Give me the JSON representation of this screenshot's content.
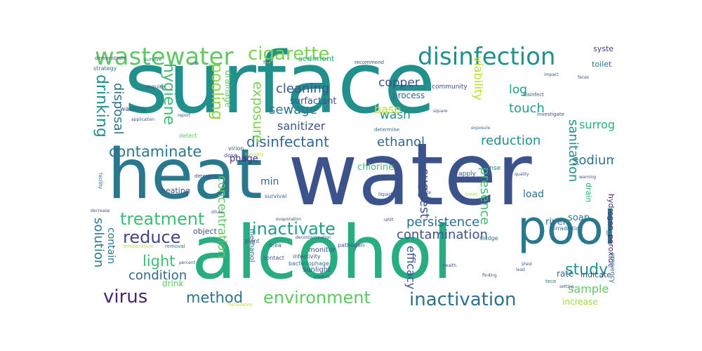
{
  "chart_data": {
    "type": "wordcloud",
    "colormap": "viridis",
    "words": [
      {
        "text": "surface",
        "color": "#21908d",
        "rot": 0
      },
      {
        "text": "water",
        "color": "#3b528b",
        "rot": 0
      },
      {
        "text": "heat",
        "color": "#2a788e",
        "rot": 0
      },
      {
        "text": "alcohol",
        "color": "#27ad81",
        "rot": 0
      },
      {
        "text": "pool",
        "color": "#2a788e",
        "rot": 0
      },
      {
        "text": "wastewater",
        "color": "#5ec962",
        "rot": 0
      },
      {
        "text": "disinfection",
        "color": "#21908d",
        "rot": 0
      },
      {
        "text": "cigarette",
        "color": "#7ad151",
        "rot": 0
      },
      {
        "text": "contaminate",
        "color": "#2a788e",
        "rot": 0
      },
      {
        "text": "disinfectant",
        "color": "#31688e",
        "rot": 0
      },
      {
        "text": "inactivation",
        "color": "#2c728e",
        "rot": 0
      },
      {
        "text": "inactivate",
        "color": "#1f9e89",
        "rot": 0
      },
      {
        "text": "treatment",
        "color": "#3fbc73",
        "rot": 0
      },
      {
        "text": "environment",
        "color": "#5ec962",
        "rot": 0
      },
      {
        "text": "virus",
        "color": "#482475",
        "rot": 0
      },
      {
        "text": "reduce",
        "color": "#414487",
        "rot": 0
      },
      {
        "text": "method",
        "color": "#2c728e",
        "rot": 0
      },
      {
        "text": "light",
        "color": "#3fbc73",
        "rot": 0
      },
      {
        "text": "study",
        "color": "#21908d",
        "rot": 0
      },
      {
        "text": "cleaning",
        "color": "#3b528b",
        "rot": 0
      },
      {
        "text": "sewage",
        "color": "#2a788e",
        "rot": 0
      },
      {
        "text": "ethanol",
        "color": "#31688e",
        "rot": 0
      },
      {
        "text": "persistence",
        "color": "#2c728e",
        "rot": 0
      },
      {
        "text": "contamination",
        "color": "#3b528b",
        "rot": 0
      },
      {
        "text": "condition",
        "color": "#31688e",
        "rot": 0
      },
      {
        "text": "reduction",
        "color": "#21908d",
        "rot": 0
      },
      {
        "text": "sodium",
        "color": "#2c728e",
        "rot": 0
      },
      {
        "text": "sanitation",
        "color": "#21908d",
        "rot": 90
      },
      {
        "text": "touch",
        "color": "#1f9e89",
        "rot": 0
      },
      {
        "text": "copper",
        "color": "#3b528b",
        "rot": 0
      },
      {
        "text": "wash",
        "color": "#21908d",
        "rot": 0
      },
      {
        "text": "base",
        "color": "#b5de2b",
        "rot": 0
      },
      {
        "text": "surrogate",
        "color": "#27ad81",
        "rot": 0
      },
      {
        "text": "log",
        "color": "#1f9e89",
        "rot": 0
      },
      {
        "text": "sanitizer",
        "color": "#3b528b",
        "rot": 0
      },
      {
        "text": "exposure",
        "color": "#7ad151",
        "rot": 90
      },
      {
        "text": "pooling",
        "color": "#90d743",
        "rot": 90
      },
      {
        "text": "hygiene",
        "color": "#3fbc73",
        "rot": 90
      },
      {
        "text": "drinking",
        "color": "#21908d",
        "rot": 90
      },
      {
        "text": "disposal",
        "color": "#2c728e",
        "rot": 90
      },
      {
        "text": "solution",
        "color": "#2a788e",
        "rot": 90
      },
      {
        "text": "viability",
        "color": "#b5de2b",
        "rot": 90
      },
      {
        "text": "concentration",
        "color": "#5ec962",
        "rot": 90
      },
      {
        "text": "presence",
        "color": "#3fbc73",
        "rot": 90
      },
      {
        "text": "suggest",
        "color": "#3b528b",
        "rot": 90
      },
      {
        "text": "effect",
        "color": "#31688e",
        "rot": 90
      },
      {
        "text": "efficacy",
        "color": "#3b528b",
        "rot": 90
      },
      {
        "text": "sample",
        "color": "#5ec962",
        "rot": 0
      },
      {
        "text": "chlorine",
        "color": "#3fbc73",
        "rot": 0
      },
      {
        "text": "min",
        "color": "#31688e",
        "rot": 0
      },
      {
        "text": "surfactant",
        "color": "#3b528b",
        "rot": 0
      },
      {
        "text": "process",
        "color": "#31688e",
        "rot": 0
      },
      {
        "text": "phage",
        "color": "#482878",
        "rot": 0
      },
      {
        "text": "increase",
        "color": "#a0da39",
        "rot": 0
      },
      {
        "text": "drainage",
        "color": "#5ec962",
        "rot": 90
      },
      {
        "text": "contain",
        "color": "#2a788e",
        "rot": 90
      },
      {
        "text": "soap",
        "color": "#2c728e",
        "rot": 0
      },
      {
        "text": "river",
        "color": "#31688e",
        "rot": 0
      },
      {
        "text": "load",
        "color": "#2c728e",
        "rot": 0
      },
      {
        "text": "drink",
        "color": "#5ec962",
        "rot": 0
      },
      {
        "text": "rate",
        "color": "#31688e",
        "rot": 0
      },
      {
        "text": "indicate",
        "color": "#3b528b",
        "rot": 0
      },
      {
        "text": "toilet",
        "color": "#2c728e",
        "rot": 0
      },
      {
        "text": "system",
        "color": "#414487",
        "rot": 0
      },
      {
        "text": "heating",
        "color": "#3b528b",
        "rot": 0
      },
      {
        "text": "sediment",
        "color": "#27ad81",
        "rot": 0
      },
      {
        "text": "community",
        "color": "#3b528b",
        "rot": 0
      },
      {
        "text": "object",
        "color": "#3b528b",
        "rot": 0
      },
      {
        "text": "monitor",
        "color": "#3b528b",
        "rot": 0
      },
      {
        "text": "sunlight",
        "color": "#3b528b",
        "rot": 0
      },
      {
        "text": "rinse",
        "color": "#2c728e",
        "rot": 0
      },
      {
        "text": "apply",
        "color": "#3b528b",
        "rot": 0
      },
      {
        "text": "hydrogen_peroxide",
        "color": "#482878",
        "rot": 90
      },
      {
        "text": "drain",
        "color": "#27ad81",
        "rot": 90
      },
      {
        "text": "washing",
        "color": "#3b528b",
        "rot": 0
      },
      {
        "text": "strategy",
        "color": "#2c728e",
        "rot": 0
      },
      {
        "text": "demonstrate",
        "color": "#3b528b",
        "rot": 0
      },
      {
        "text": "survive",
        "color": "#2c728e",
        "rot": 0
      },
      {
        "text": "require",
        "color": "#3b528b",
        "rot": 0
      },
      {
        "text": "detect",
        "color": "#5ec962",
        "rot": 0
      },
      {
        "text": "virion",
        "color": "#3b528b",
        "rot": 0
      },
      {
        "text": "dose",
        "color": "#3b528b",
        "rot": 0
      },
      {
        "text": "survival",
        "color": "#31688e",
        "rot": 0
      },
      {
        "text": "methanol",
        "color": "#31688e",
        "rot": 90
      },
      {
        "text": "infectivity",
        "color": "#3b528b",
        "rot": 0
      },
      {
        "text": "bacteriophage",
        "color": "#2c728e",
        "rot": 0
      },
      {
        "text": "pathogen",
        "color": "#3b528b",
        "rot": 0
      },
      {
        "text": "area",
        "color": "#31688e",
        "rot": 0
      },
      {
        "text": "contact",
        "color": "#3b528b",
        "rot": 0
      },
      {
        "text": "plant",
        "color": "#3b528b",
        "rot": 0
      },
      {
        "text": "liquid",
        "color": "#3b528b",
        "rot": 0
      },
      {
        "text": "unit",
        "color": "#3b528b",
        "rot": 0
      },
      {
        "text": "sludge",
        "color": "#2c728e",
        "rot": 0
      },
      {
        "text": "irradiation",
        "color": "#31688e",
        "rot": 0
      },
      {
        "text": "efficiency",
        "color": "#2c728e",
        "rot": 90
      },
      {
        "text": "investigate",
        "color": "#3b528b",
        "rot": 0
      },
      {
        "text": "disinfect",
        "color": "#3b528b",
        "rot": 0
      },
      {
        "text": "determine",
        "color": "#2c728e",
        "rot": 0
      },
      {
        "text": "recommend",
        "color": "#3b528b",
        "rot": 0
      },
      {
        "text": "fate",
        "color": "#3b528b",
        "rot": 0
      },
      {
        "text": "square",
        "color": "#3b528b",
        "rot": 0
      },
      {
        "text": "exposure",
        "color": "#2c728e",
        "rot": 0
      },
      {
        "text": "quality",
        "color": "#3b528b",
        "rot": 0
      },
      {
        "text": "warning",
        "color": "#3b528b",
        "rot": 0
      },
      {
        "text": "substance",
        "color": "#3b528b",
        "rot": 90
      },
      {
        "text": "stability",
        "color": "#3b528b",
        "rot": 90
      },
      {
        "text": "impact",
        "color": "#3b528b",
        "rot": 0
      },
      {
        "text": "feces",
        "color": "#3b528b",
        "rot": 0
      },
      {
        "text": "side",
        "color": "#3b528b",
        "rot": 0
      },
      {
        "text": "report",
        "color": "#3b528b",
        "rot": 0
      },
      {
        "text": "application",
        "color": "#3b528b",
        "rot": 0
      },
      {
        "text": "detergent",
        "color": "#3b528b",
        "rot": 0
      },
      {
        "text": "facility",
        "color": "#2c728e",
        "rot": 90
      },
      {
        "text": "temperature",
        "color": "#b5de2b",
        "rot": 0
      },
      {
        "text": "removal",
        "color": "#2c728e",
        "rot": 0
      },
      {
        "text": "dilute",
        "color": "#3b528b",
        "rot": 0
      },
      {
        "text": "evaporation",
        "color": "#3b528b",
        "rot": 0
      },
      {
        "text": "decontamination",
        "color": "#3b528b",
        "rot": 0
      },
      {
        "text": "product",
        "color": "#3b528b",
        "rot": 0
      },
      {
        "text": "health",
        "color": "#3b528b",
        "rot": 0
      },
      {
        "text": "finding",
        "color": "#3b528b",
        "rot": 0
      },
      {
        "text": "setting",
        "color": "#3b528b",
        "rot": 0
      },
      {
        "text": "treat",
        "color": "#b5de2b",
        "rot": 0
      },
      {
        "text": "toilite",
        "color": "#3b528b",
        "rot": 0
      },
      {
        "text": "shed",
        "color": "#3b528b",
        "rot": 0
      },
      {
        "text": "decrease",
        "color": "#3b528b",
        "rot": 0
      },
      {
        "text": "humidity",
        "color": "#b5de2b",
        "rot": 0
      },
      {
        "text": "formulation",
        "color": "#b5de2b",
        "rot": 0
      },
      {
        "text": "tece",
        "color": "#2c728e",
        "rot": 0
      },
      {
        "text": "percent",
        "color": "#3b528b",
        "rot": 0
      },
      {
        "text": "lead",
        "color": "#3b528b",
        "rot": 0
      }
    ]
  }
}
